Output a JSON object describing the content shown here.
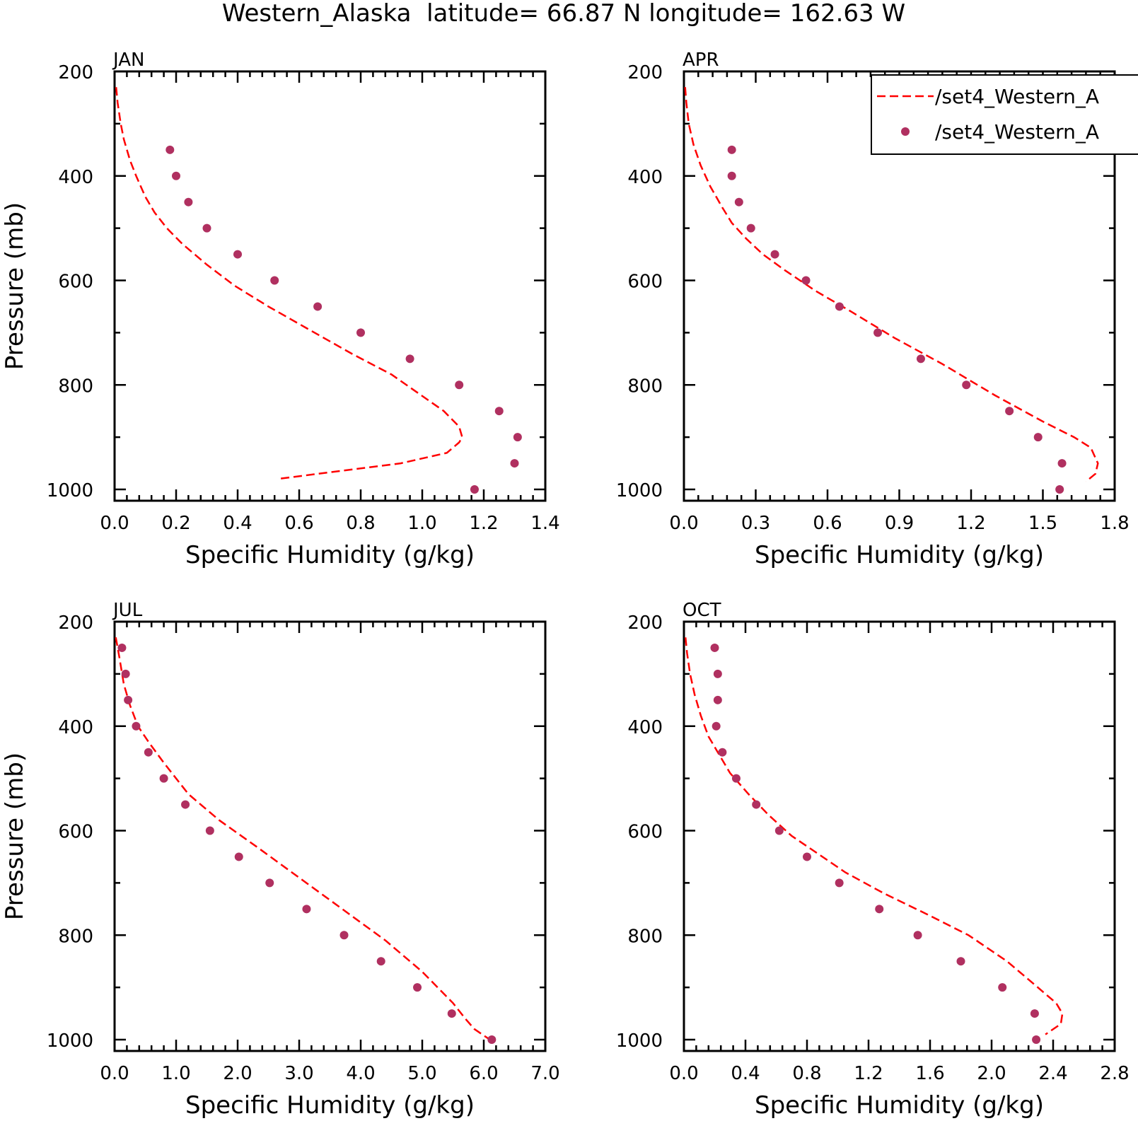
{
  "title": "Western_Alaska  latitude= 66.87 N longitude= 162.63 W",
  "colors": {
    "model_line": "#ff0000",
    "obs_marker": "#b03060",
    "axis": "#000000"
  },
  "legend": {
    "placement": "top-right of APR panel",
    "entries": [
      {
        "label": "/set4_Western_A",
        "style": "dashed-line"
      },
      {
        "label": "/set4_Western_A",
        "style": "marker"
      }
    ]
  },
  "chart_data": [
    {
      "type": "line",
      "panel_label": "JAN",
      "xlabel": "Specific Humidity (g/kg)",
      "ylabel": "Pressure (mb)",
      "xlim": [
        0,
        1.4
      ],
      "ylim": [
        1000,
        200
      ],
      "y_inverted": true,
      "xticks": [
        "0.0",
        "0.2",
        "0.4",
        "0.6",
        "0.8",
        "1.0",
        "1.2",
        "1.4"
      ],
      "yticks": [
        "200",
        "400",
        "600",
        "800",
        "1000"
      ],
      "series": [
        {
          "style": "dashed-line",
          "x": [
            0.005,
            0.01,
            0.02,
            0.03,
            0.05,
            0.07,
            0.1,
            0.13,
            0.17,
            0.22,
            0.3,
            0.39,
            0.5,
            0.62,
            0.77,
            0.9,
            1.07,
            1.12,
            1.13,
            1.12,
            1.08,
            0.93,
            0.73,
            0.53
          ],
          "y": [
            230,
            260,
            300,
            330,
            370,
            400,
            440,
            470,
            500,
            530,
            570,
            610,
            650,
            690,
            740,
            780,
            850,
            880,
            900,
            910,
            930,
            950,
            965,
            980
          ]
        },
        {
          "style": "marker",
          "x": [
            0.18,
            0.2,
            0.24,
            0.3,
            0.4,
            0.52,
            0.66,
            0.8,
            0.96,
            1.12,
            1.25,
            1.31,
            1.3,
            1.17
          ],
          "y": [
            350,
            400,
            450,
            500,
            550,
            600,
            650,
            700,
            750,
            800,
            850,
            900,
            950,
            1000
          ]
        }
      ]
    },
    {
      "type": "line",
      "panel_label": "APR",
      "xlabel": "Specific Humidity (g/kg)",
      "ylabel": "",
      "xlim": [
        0,
        1.8
      ],
      "ylim": [
        1000,
        200
      ],
      "y_inverted": true,
      "xticks": [
        "0.0",
        "0.3",
        "0.6",
        "0.9",
        "1.2",
        "1.5",
        "1.8"
      ],
      "yticks": [
        "200",
        "400",
        "600",
        "800",
        "1000"
      ],
      "series": [
        {
          "style": "dashed-line",
          "x": [
            0.005,
            0.01,
            0.02,
            0.04,
            0.07,
            0.11,
            0.16,
            0.2,
            0.26,
            0.33,
            0.42,
            0.55,
            0.7,
            0.88,
            1.08,
            1.3,
            1.5,
            1.63,
            1.7,
            1.73,
            1.72,
            1.68
          ],
          "y": [
            230,
            260,
            300,
            340,
            380,
            420,
            460,
            490,
            520,
            550,
            580,
            620,
            660,
            710,
            760,
            820,
            870,
            900,
            920,
            950,
            970,
            985
          ]
        },
        {
          "style": "marker",
          "x": [
            0.2,
            0.2,
            0.23,
            0.28,
            0.38,
            0.51,
            0.65,
            0.81,
            0.99,
            1.18,
            1.36,
            1.48,
            1.58,
            1.57
          ],
          "y": [
            350,
            400,
            450,
            500,
            550,
            600,
            650,
            700,
            750,
            800,
            850,
            900,
            950,
            1000
          ]
        }
      ]
    },
    {
      "type": "line",
      "panel_label": "JUL",
      "xlabel": "Specific Humidity (g/kg)",
      "ylabel": "Pressure (mb)",
      "xlim": [
        0,
        7
      ],
      "ylim": [
        1000,
        200
      ],
      "y_inverted": true,
      "xticks": [
        "0.0",
        "1.0",
        "2.0",
        "3.0",
        "4.0",
        "5.0",
        "6.0",
        "7.0"
      ],
      "yticks": [
        "200",
        "400",
        "600",
        "800",
        "1000"
      ],
      "series": [
        {
          "style": "dashed-line",
          "x": [
            0.02,
            0.08,
            0.15,
            0.25,
            0.38,
            0.55,
            0.8,
            1.2,
            1.7,
            2.3,
            3.0,
            3.7,
            4.4,
            5.0,
            5.5,
            5.7,
            5.85,
            6.1
          ],
          "y": [
            230,
            270,
            320,
            360,
            400,
            430,
            470,
            530,
            580,
            630,
            690,
            750,
            810,
            870,
            930,
            960,
            980,
            1000
          ]
        },
        {
          "style": "marker",
          "x": [
            0.12,
            0.18,
            0.22,
            0.35,
            0.55,
            0.8,
            1.15,
            1.55,
            2.02,
            2.52,
            3.12,
            3.73,
            4.33,
            4.92,
            5.48,
            6.13
          ],
          "y": [
            250,
            300,
            350,
            400,
            450,
            500,
            550,
            600,
            650,
            700,
            750,
            800,
            850,
            900,
            950,
            1000
          ]
        }
      ]
    },
    {
      "type": "line",
      "panel_label": "OCT",
      "xlabel": "Specific Humidity (g/kg)",
      "ylabel": "",
      "xlim": [
        0,
        2.8
      ],
      "ylim": [
        1000,
        200
      ],
      "y_inverted": true,
      "xticks": [
        "0.0",
        "0.4",
        "0.8",
        "1.2",
        "1.6",
        "2.0",
        "2.4",
        "2.8"
      ],
      "yticks": [
        "200",
        "400",
        "600",
        "800",
        "1000"
      ],
      "series": [
        {
          "style": "dashed-line",
          "x": [
            0.01,
            0.02,
            0.04,
            0.07,
            0.11,
            0.16,
            0.22,
            0.3,
            0.42,
            0.55,
            0.7,
            0.85,
            1.05,
            1.3,
            1.58,
            1.85,
            2.1,
            2.3,
            2.42,
            2.46,
            2.45,
            2.35
          ],
          "y": [
            230,
            260,
            300,
            340,
            380,
            420,
            450,
            490,
            530,
            570,
            610,
            640,
            680,
            720,
            760,
            800,
            850,
            900,
            930,
            950,
            970,
            990
          ]
        },
        {
          "style": "marker",
          "x": [
            0.2,
            0.22,
            0.22,
            0.21,
            0.25,
            0.34,
            0.47,
            0.62,
            0.8,
            1.01,
            1.27,
            1.52,
            1.8,
            2.07,
            2.28,
            2.29
          ],
          "y": [
            250,
            300,
            350,
            400,
            450,
            500,
            550,
            600,
            650,
            700,
            750,
            800,
            850,
            900,
            950,
            1000
          ]
        }
      ]
    }
  ]
}
